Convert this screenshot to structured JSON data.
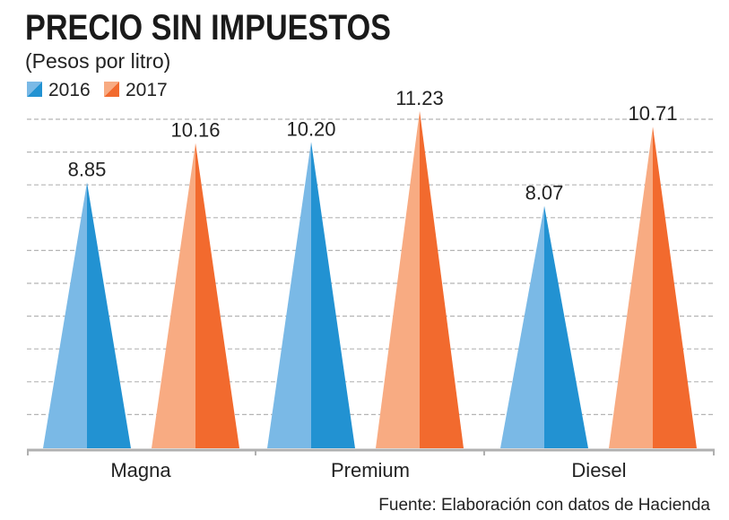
{
  "chart_data": {
    "type": "bar",
    "mark_shape": "triangle",
    "title": "PRECIO SIN IMPUESTOS",
    "subtitle": "(Pesos por litro)",
    "categories": [
      "Magna",
      "Premium",
      "Diesel"
    ],
    "series": [
      {
        "name": "2016",
        "values": [
          8.85,
          10.2,
          8.07
        ],
        "value_labels": [
          "8.85",
          "10.20",
          "8.07"
        ],
        "color_light": "#7ab9e6",
        "color_dark": "#2292d2"
      },
      {
        "name": "2017",
        "values": [
          10.16,
          11.23,
          10.71
        ],
        "value_labels": [
          "10.16",
          "11.23",
          "10.71"
        ],
        "color_light": "#f8ab82",
        "color_dark": "#f26a2e"
      }
    ],
    "legend_position": "top-left",
    "grid": true,
    "source": "Fuente: Elaboración con datos de Hacienda"
  }
}
